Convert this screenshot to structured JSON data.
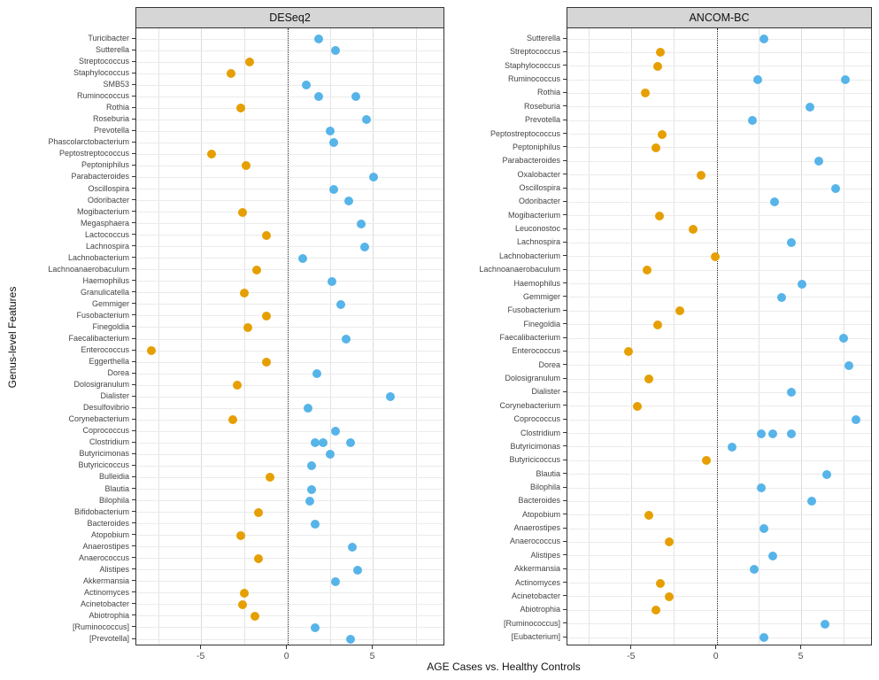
{
  "figure": {
    "y_axis_label": "Genus-level Features",
    "x_axis_label": "AGE Cases vs. Healthy Controls",
    "point_colors": {
      "positive": "#56B4E9",
      "negative": "#E69F00"
    }
  },
  "chart_data": [
    {
      "type": "scatter",
      "title": "DESeq2",
      "xlabel": "AGE Cases vs. Healthy Controls",
      "ylabel": "Genus-level Features",
      "xlim": [
        -8.8,
        9.2
      ],
      "x_ticks": [
        -5,
        0,
        5
      ],
      "reference_line_x": 0,
      "grid": "major and minor vertical every 2.5, horizontal per row",
      "rows": [
        {
          "label": "Turicibacter",
          "values": [
            1.8
          ]
        },
        {
          "label": "Sutterella",
          "values": [
            2.8
          ]
        },
        {
          "label": "Streptococcus",
          "values": [
            -2.2
          ]
        },
        {
          "label": "Staphylococcus",
          "values": [
            -3.3
          ]
        },
        {
          "label": "SMB53",
          "values": [
            1.1
          ]
        },
        {
          "label": "Ruminococcus",
          "values": [
            1.8,
            4.0
          ]
        },
        {
          "label": "Rothia",
          "values": [
            -2.7
          ]
        },
        {
          "label": "Roseburia",
          "values": [
            4.6
          ]
        },
        {
          "label": "Prevotella",
          "values": [
            2.5
          ]
        },
        {
          "label": "Phascolarctobacterium",
          "values": [
            2.7
          ]
        },
        {
          "label": "Peptostreptococcus",
          "values": [
            -4.4
          ]
        },
        {
          "label": "Peptoniphilus",
          "values": [
            -2.4
          ]
        },
        {
          "label": "Parabacteroides",
          "values": [
            5.0
          ]
        },
        {
          "label": "Oscillospira",
          "values": [
            2.7
          ]
        },
        {
          "label": "Odoribacter",
          "values": [
            3.6
          ]
        },
        {
          "label": "Mogibacterium",
          "values": [
            -2.6
          ]
        },
        {
          "label": "Megasphaera",
          "values": [
            4.3
          ]
        },
        {
          "label": "Lactococcus",
          "values": [
            -1.2
          ]
        },
        {
          "label": "Lachnospira",
          "values": [
            4.5
          ]
        },
        {
          "label": "Lachnobacterium",
          "values": [
            0.9
          ]
        },
        {
          "label": "Lachnoanaerobaculum",
          "values": [
            -1.8
          ]
        },
        {
          "label": "Haemophilus",
          "values": [
            2.6
          ]
        },
        {
          "label": "Granulicatella",
          "values": [
            -2.5
          ]
        },
        {
          "label": "Gemmiger",
          "values": [
            3.1
          ]
        },
        {
          "label": "Fusobacterium",
          "values": [
            -1.2
          ]
        },
        {
          "label": "Finegoldia",
          "values": [
            -2.3
          ]
        },
        {
          "label": "Faecalibacterium",
          "values": [
            3.4
          ]
        },
        {
          "label": "Enterococcus",
          "values": [
            -7.9
          ]
        },
        {
          "label": "Eggerthella",
          "values": [
            -1.2
          ]
        },
        {
          "label": "Dorea",
          "values": [
            1.7
          ]
        },
        {
          "label": "Dolosigranulum",
          "values": [
            -2.9
          ]
        },
        {
          "label": "Dialister",
          "values": [
            6.0
          ]
        },
        {
          "label": "Desulfovibrio",
          "values": [
            1.2
          ]
        },
        {
          "label": "Corynebacterium",
          "values": [
            -3.2
          ]
        },
        {
          "label": "Coprococcus",
          "values": [
            2.8
          ]
        },
        {
          "label": "Clostridium",
          "values": [
            1.6,
            2.1,
            3.7
          ]
        },
        {
          "label": "Butyricimonas",
          "values": [
            2.5
          ]
        },
        {
          "label": "Butyricicoccus",
          "values": [
            1.4
          ]
        },
        {
          "label": "Bulleidia",
          "values": [
            -1.0
          ]
        },
        {
          "label": "Blautia",
          "values": [
            1.4
          ]
        },
        {
          "label": "Bilophila",
          "values": [
            1.3
          ]
        },
        {
          "label": "Bifidobacterium",
          "values": [
            -1.7
          ]
        },
        {
          "label": "Bacteroides",
          "values": [
            1.6
          ]
        },
        {
          "label": "Atopobium",
          "values": [
            -2.7
          ]
        },
        {
          "label": "Anaerostipes",
          "values": [
            3.8
          ]
        },
        {
          "label": "Anaerococcus",
          "values": [
            -1.7
          ]
        },
        {
          "label": "Alistipes",
          "values": [
            4.1
          ]
        },
        {
          "label": "Akkermansia",
          "values": [
            2.8
          ]
        },
        {
          "label": "Actinomyces",
          "values": [
            -2.5
          ]
        },
        {
          "label": "Acinetobacter",
          "values": [
            -2.6
          ]
        },
        {
          "label": "Abiotrophia",
          "values": [
            -1.9
          ]
        },
        {
          "label": "[Ruminococcus]",
          "values": [
            1.6
          ]
        },
        {
          "label": "[Prevotella]",
          "values": [
            3.7
          ]
        }
      ]
    },
    {
      "type": "scatter",
      "title": "ANCOM-BC",
      "xlabel": "AGE Cases vs. Healthy Controls",
      "ylabel": "Genus-level Features",
      "xlim": [
        -8.8,
        9.2
      ],
      "x_ticks": [
        -5,
        0,
        5
      ],
      "reference_line_x": 0,
      "grid": "major and minor vertical every 2.5, horizontal per row",
      "rows": [
        {
          "label": "Sutterella",
          "values": [
            2.8
          ]
        },
        {
          "label": "Streptococcus",
          "values": [
            -3.3
          ]
        },
        {
          "label": "Staphylococcus",
          "values": [
            -3.5
          ]
        },
        {
          "label": "Ruminococcus",
          "values": [
            2.4,
            7.6
          ]
        },
        {
          "label": "Rothia",
          "values": [
            -4.2
          ]
        },
        {
          "label": "Roseburia",
          "values": [
            5.5
          ]
        },
        {
          "label": "Prevotella",
          "values": [
            2.1
          ]
        },
        {
          "label": "Peptostreptococcus",
          "values": [
            -3.2
          ]
        },
        {
          "label": "Peptoniphilus",
          "values": [
            -3.6
          ]
        },
        {
          "label": "Parabacteroides",
          "values": [
            6.0
          ]
        },
        {
          "label": "Oxalobacter",
          "values": [
            -0.9
          ]
        },
        {
          "label": "Oscillospira",
          "values": [
            7.0
          ]
        },
        {
          "label": "Odoribacter",
          "values": [
            3.4
          ]
        },
        {
          "label": "Mogibacterium",
          "values": [
            -3.4
          ]
        },
        {
          "label": "Leuconostoc",
          "values": [
            -1.4
          ]
        },
        {
          "label": "Lachnospira",
          "values": [
            4.4
          ]
        },
        {
          "label": "Lachnobacterium",
          "values": [
            -0.1
          ]
        },
        {
          "label": "Lachnoanaerobaculum",
          "values": [
            -4.1
          ]
        },
        {
          "label": "Haemophilus",
          "values": [
            5.0
          ]
        },
        {
          "label": "Gemmiger",
          "values": [
            3.8
          ]
        },
        {
          "label": "Fusobacterium",
          "values": [
            -2.2
          ]
        },
        {
          "label": "Finegoldia",
          "values": [
            -3.5
          ]
        },
        {
          "label": "Faecalibacterium",
          "values": [
            7.5
          ]
        },
        {
          "label": "Enterococcus",
          "values": [
            -5.2
          ]
        },
        {
          "label": "Dorea",
          "values": [
            7.8
          ]
        },
        {
          "label": "Dolosigranulum",
          "values": [
            -4.0
          ]
        },
        {
          "label": "Dialister",
          "values": [
            4.4
          ]
        },
        {
          "label": "Corynebacterium",
          "values": [
            -4.7
          ]
        },
        {
          "label": "Coprococcus",
          "values": [
            8.2
          ]
        },
        {
          "label": "Clostridium",
          "values": [
            2.6,
            3.3,
            4.4
          ]
        },
        {
          "label": "Butyricimonas",
          "values": [
            0.9
          ]
        },
        {
          "label": "Butyricicoccus",
          "values": [
            -0.6
          ]
        },
        {
          "label": "Blautia",
          "values": [
            6.5
          ]
        },
        {
          "label": "Bilophila",
          "values": [
            2.6
          ]
        },
        {
          "label": "Bacteroides",
          "values": [
            5.6
          ]
        },
        {
          "label": "Atopobium",
          "values": [
            -4.0
          ]
        },
        {
          "label": "Anaerostipes",
          "values": [
            2.8
          ]
        },
        {
          "label": "Anaerococcus",
          "values": [
            -2.8
          ]
        },
        {
          "label": "Alistipes",
          "values": [
            3.3
          ]
        },
        {
          "label": "Akkermansia",
          "values": [
            2.2
          ]
        },
        {
          "label": "Actinomyces",
          "values": [
            -3.3
          ]
        },
        {
          "label": "Acinetobacter",
          "values": [
            -2.8
          ]
        },
        {
          "label": "Abiotrophia",
          "values": [
            -3.6
          ]
        },
        {
          "label": "[Ruminococcus]",
          "values": [
            6.4
          ]
        },
        {
          "label": "[Eubacterium]",
          "values": [
            2.8
          ]
        }
      ]
    }
  ]
}
